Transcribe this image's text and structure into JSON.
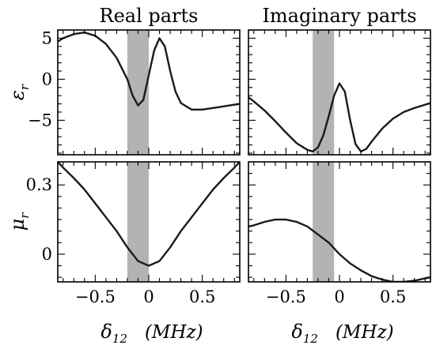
{
  "chart_data": [
    {
      "id": "eps_real",
      "type": "line",
      "title": "Real parts",
      "ylabel_symbol": "ε",
      "ylabel_subscript": "r",
      "xlim": [
        -0.85,
        0.85
      ],
      "ylim": [
        -9.2,
        6.0
      ],
      "yticks": [
        5,
        0,
        -5
      ],
      "ytick_labels": [
        "5",
        "0",
        "−5"
      ],
      "xticks": [],
      "band": [
        -0.2,
        0.0
      ],
      "x": [
        -0.85,
        -0.8,
        -0.7,
        -0.6,
        -0.5,
        -0.4,
        -0.3,
        -0.2,
        -0.15,
        -0.1,
        -0.05,
        0.0,
        0.05,
        0.1,
        0.15,
        0.2,
        0.25,
        0.3,
        0.4,
        0.5,
        0.6,
        0.7,
        0.8,
        0.85
      ],
      "y": [
        4.6,
        5.0,
        5.5,
        5.7,
        5.3,
        4.3,
        2.6,
        0.0,
        -2.0,
        -3.2,
        -2.5,
        0.5,
        3.5,
        5.0,
        4.0,
        1.0,
        -1.5,
        -2.9,
        -3.7,
        -3.7,
        -3.5,
        -3.3,
        -3.1,
        -3.0
      ]
    },
    {
      "id": "eps_imag",
      "type": "line",
      "title": "Imaginary parts",
      "xlim": [
        -0.85,
        0.85
      ],
      "ylim": [
        -9.2,
        6.0
      ],
      "yticks": [
        5,
        0,
        -5
      ],
      "ytick_labels": [],
      "xticks": [],
      "band": [
        -0.25,
        -0.05
      ],
      "x": [
        -0.85,
        -0.8,
        -0.7,
        -0.6,
        -0.5,
        -0.4,
        -0.3,
        -0.25,
        -0.2,
        -0.15,
        -0.1,
        -0.05,
        0.0,
        0.05,
        0.1,
        0.15,
        0.2,
        0.25,
        0.3,
        0.4,
        0.5,
        0.6,
        0.7,
        0.8,
        0.85
      ],
      "y": [
        -2.2,
        -2.7,
        -3.8,
        -5.1,
        -6.5,
        -7.8,
        -8.6,
        -8.8,
        -8.3,
        -6.8,
        -4.5,
        -2.0,
        -0.5,
        -1.5,
        -5.0,
        -7.9,
        -8.8,
        -8.5,
        -7.6,
        -6.0,
        -4.8,
        -4.0,
        -3.5,
        -3.1,
        -2.9
      ]
    },
    {
      "id": "mu_real",
      "type": "line",
      "ylabel_symbol": "μ",
      "ylabel_subscript": "r",
      "xlim": [
        -0.85,
        0.85
      ],
      "ylim": [
        -0.12,
        0.4
      ],
      "yticks": [
        0.3,
        0.0
      ],
      "ytick_labels": [
        "0.3",
        "0"
      ],
      "xticks": [
        -0.5,
        0.0,
        0.5
      ],
      "xtick_labels": [
        "−0.5",
        "0",
        "0.5"
      ],
      "xlabel_symbol": "δ",
      "xlabel_subscript": "12",
      "xlabel_unit": "(MHz)",
      "band": [
        -0.2,
        0.0
      ],
      "x": [
        -0.85,
        -0.8,
        -0.7,
        -0.6,
        -0.5,
        -0.4,
        -0.3,
        -0.2,
        -0.1,
        0.0,
        0.1,
        0.2,
        0.3,
        0.4,
        0.5,
        0.6,
        0.7,
        0.8,
        0.85
      ],
      "y": [
        0.4,
        0.375,
        0.33,
        0.28,
        0.22,
        0.16,
        0.1,
        0.03,
        -0.03,
        -0.05,
        -0.03,
        0.03,
        0.1,
        0.16,
        0.22,
        0.28,
        0.33,
        0.375,
        0.4
      ]
    },
    {
      "id": "mu_imag",
      "type": "line",
      "xlim": [
        -0.85,
        0.85
      ],
      "ylim": [
        -0.12,
        0.4
      ],
      "yticks": [
        0.3,
        0.0
      ],
      "ytick_labels": [],
      "xticks": [
        -0.5,
        0.0,
        0.5
      ],
      "xtick_labels": [
        "−0.5",
        "0",
        "0.5"
      ],
      "xlabel_symbol": "δ",
      "xlabel_subscript": "12",
      "xlabel_unit": "(MHz)",
      "band": [
        -0.25,
        -0.05
      ],
      "x": [
        -0.85,
        -0.8,
        -0.7,
        -0.6,
        -0.5,
        -0.4,
        -0.3,
        -0.2,
        -0.1,
        0.0,
        0.1,
        0.2,
        0.3,
        0.4,
        0.5,
        0.6,
        0.7,
        0.8,
        0.85
      ],
      "y": [
        0.12,
        0.125,
        0.14,
        0.15,
        0.15,
        0.14,
        0.12,
        0.085,
        0.05,
        0.0,
        -0.04,
        -0.07,
        -0.095,
        -0.11,
        -0.12,
        -0.12,
        -0.115,
        -0.105,
        -0.1
      ]
    }
  ]
}
